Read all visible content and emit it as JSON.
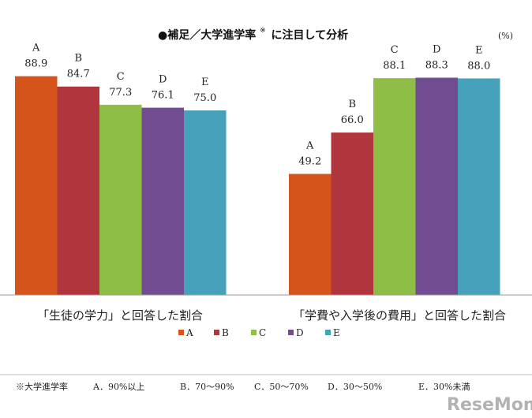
{
  "chart_data": {
    "type": "bar",
    "title": "●補足／大学進学率",
    "title_superscript": "※",
    "title_suffix": "に注目して分析",
    "unit": "(%)",
    "categories": [
      "「生徒の学力」と回答した割合",
      "「学費や入学後の費用」と回答した割合"
    ],
    "series": [
      {
        "name": "A",
        "color": "#d5541c",
        "values": [
          88.9,
          49.2
        ]
      },
      {
        "name": "B",
        "color": "#b0353d",
        "values": [
          84.7,
          66.0
        ]
      },
      {
        "name": "C",
        "color": "#8fbe47",
        "values": [
          77.3,
          88.1
        ]
      },
      {
        "name": "D",
        "color": "#714c91",
        "values": [
          76.1,
          88.3
        ]
      },
      {
        "name": "E",
        "color": "#46a2bb",
        "values": [
          75.0,
          88.0
        ]
      }
    ],
    "value_labels": [
      [
        "88.9",
        "84.7",
        "77.3",
        "76.1",
        "75.0"
      ],
      [
        "49.2",
        "66.0",
        "88.1",
        "88.3",
        "88.0"
      ]
    ],
    "ylim": [
      0,
      100
    ],
    "grid": false,
    "legend_position": "bottom-center"
  },
  "footnote": {
    "prefix": "※大学進学率",
    "items": [
      "A．90%以上",
      "B．70～90%",
      "C．50～70%",
      "D．30～50%",
      "E．30%未満"
    ]
  },
  "watermark": "ReseMom"
}
